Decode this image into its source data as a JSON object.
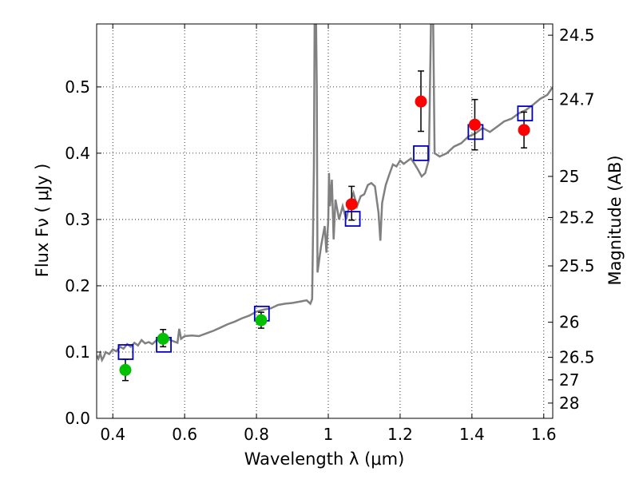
{
  "chart_data": {
    "type": "scatter",
    "xlabel": "Wavelength  λ (μm)",
    "ylabel": "Flux  Fν  ( μJy )",
    "y2label": "Magnitude (AB)",
    "xlim": [
      0.355,
      1.625
    ],
    "ylim": [
      0.0,
      0.595
    ],
    "x_ticks": [
      0.4,
      0.6,
      0.8,
      1.0,
      1.2,
      1.4,
      1.6
    ],
    "x_tick_labels": [
      "0.4",
      "0.6",
      "0.8",
      "1",
      "1.2",
      "1.4",
      "1.6"
    ],
    "y_ticks": [
      0.0,
      0.1,
      0.2,
      0.3,
      0.4,
      0.5
    ],
    "y_tick_labels": [
      "0.0",
      "0.1",
      "0.2",
      "0.3",
      "0.4",
      "0.5"
    ],
    "y2_ticks": [
      {
        "label": "24.5",
        "flux": 0.578
      },
      {
        "label": "24.7",
        "flux": 0.481
      },
      {
        "label": "25",
        "flux": 0.365
      },
      {
        "label": "25.2",
        "flux": 0.303
      },
      {
        "label": "25.5",
        "flux": 0.23
      },
      {
        "label": "26",
        "flux": 0.145
      },
      {
        "label": "26.5",
        "flux": 0.092
      },
      {
        "label": "27",
        "flux": 0.058
      },
      {
        "label": "28",
        "flux": 0.023
      }
    ],
    "grid": true,
    "colors": {
      "model": "#808080",
      "green": "#00c000",
      "red": "#ff0000",
      "box": "#0000cc",
      "error": "#000000"
    },
    "model_spectrum": [
      [
        0.355,
        0.095
      ],
      [
        0.36,
        0.09
      ],
      [
        0.365,
        0.098
      ],
      [
        0.37,
        0.088
      ],
      [
        0.375,
        0.093
      ],
      [
        0.38,
        0.1
      ],
      [
        0.39,
        0.097
      ],
      [
        0.4,
        0.104
      ],
      [
        0.41,
        0.101
      ],
      [
        0.42,
        0.108
      ],
      [
        0.43,
        0.105
      ],
      [
        0.44,
        0.112
      ],
      [
        0.45,
        0.108
      ],
      [
        0.46,
        0.114
      ],
      [
        0.47,
        0.11
      ],
      [
        0.48,
        0.118
      ],
      [
        0.49,
        0.113
      ],
      [
        0.5,
        0.115
      ],
      [
        0.51,
        0.112
      ],
      [
        0.52,
        0.117
      ],
      [
        0.53,
        0.121
      ],
      [
        0.54,
        0.119
      ],
      [
        0.55,
        0.122
      ],
      [
        0.56,
        0.118
      ],
      [
        0.57,
        0.116
      ],
      [
        0.58,
        0.114
      ],
      [
        0.585,
        0.135
      ],
      [
        0.59,
        0.12
      ],
      [
        0.6,
        0.124
      ],
      [
        0.62,
        0.125
      ],
      [
        0.64,
        0.124
      ],
      [
        0.66,
        0.128
      ],
      [
        0.68,
        0.132
      ],
      [
        0.7,
        0.137
      ],
      [
        0.72,
        0.142
      ],
      [
        0.74,
        0.146
      ],
      [
        0.76,
        0.151
      ],
      [
        0.78,
        0.155
      ],
      [
        0.8,
        0.161
      ],
      [
        0.82,
        0.164
      ],
      [
        0.84,
        0.166
      ],
      [
        0.86,
        0.171
      ],
      [
        0.88,
        0.173
      ],
      [
        0.9,
        0.174
      ],
      [
        0.92,
        0.176
      ],
      [
        0.94,
        0.178
      ],
      [
        0.95,
        0.173
      ],
      [
        0.955,
        0.18
      ],
      [
        0.96,
        0.38
      ],
      [
        0.962,
        0.6
      ],
      [
        0.966,
        0.6
      ],
      [
        0.968,
        0.5
      ],
      [
        0.97,
        0.22
      ],
      [
        0.98,
        0.26
      ],
      [
        0.99,
        0.29
      ],
      [
        0.995,
        0.25
      ],
      [
        1.0,
        0.3
      ],
      [
        1.002,
        0.37
      ],
      [
        1.005,
        0.32
      ],
      [
        1.01,
        0.36
      ],
      [
        1.015,
        0.27
      ],
      [
        1.02,
        0.33
      ],
      [
        1.03,
        0.3
      ],
      [
        1.04,
        0.32
      ],
      [
        1.05,
        0.3
      ],
      [
        1.06,
        0.325
      ],
      [
        1.07,
        0.34
      ],
      [
        1.08,
        0.32
      ],
      [
        1.09,
        0.335
      ],
      [
        1.1,
        0.338
      ],
      [
        1.11,
        0.352
      ],
      [
        1.12,
        0.355
      ],
      [
        1.13,
        0.35
      ],
      [
        1.14,
        0.31
      ],
      [
        1.145,
        0.268
      ],
      [
        1.15,
        0.325
      ],
      [
        1.16,
        0.352
      ],
      [
        1.17,
        0.368
      ],
      [
        1.18,
        0.383
      ],
      [
        1.19,
        0.38
      ],
      [
        1.2,
        0.389
      ],
      [
        1.21,
        0.384
      ],
      [
        1.22,
        0.388
      ],
      [
        1.23,
        0.392
      ],
      [
        1.24,
        0.384
      ],
      [
        1.25,
        0.375
      ],
      [
        1.26,
        0.365
      ],
      [
        1.27,
        0.37
      ],
      [
        1.28,
        0.39
      ],
      [
        1.286,
        0.6
      ],
      [
        1.292,
        0.6
      ],
      [
        1.296,
        0.4
      ],
      [
        1.31,
        0.395
      ],
      [
        1.33,
        0.4
      ],
      [
        1.35,
        0.41
      ],
      [
        1.37,
        0.415
      ],
      [
        1.39,
        0.425
      ],
      [
        1.41,
        0.43
      ],
      [
        1.43,
        0.438
      ],
      [
        1.45,
        0.432
      ],
      [
        1.47,
        0.44
      ],
      [
        1.49,
        0.448
      ],
      [
        1.51,
        0.452
      ],
      [
        1.53,
        0.46
      ],
      [
        1.55,
        0.465
      ],
      [
        1.57,
        0.473
      ],
      [
        1.59,
        0.482
      ],
      [
        1.61,
        0.488
      ],
      [
        1.625,
        0.5
      ]
    ],
    "green_points": [
      {
        "x": 0.435,
        "y": 0.073,
        "yerr_low": 0.016,
        "yerr_high": 0.016
      },
      {
        "x": 0.54,
        "y": 0.12,
        "yerr_low": 0.012,
        "yerr_high": 0.014
      },
      {
        "x": 0.813,
        "y": 0.148,
        "yerr_low": 0.012,
        "yerr_high": 0.012
      }
    ],
    "red_points": [
      {
        "x": 1.065,
        "y": 0.323,
        "yerr_low": 0.024,
        "yerr_high": 0.027
      },
      {
        "x": 1.258,
        "y": 0.478,
        "yerr_low": 0.045,
        "yerr_high": 0.046
      },
      {
        "x": 1.408,
        "y": 0.443,
        "yerr_low": 0.038,
        "yerr_high": 0.038
      },
      {
        "x": 1.545,
        "y": 0.435,
        "yerr_low": 0.027,
        "yerr_high": 0.027
      }
    ],
    "model_boxes": [
      {
        "x": 0.436,
        "y": 0.1
      },
      {
        "x": 0.542,
        "y": 0.111
      },
      {
        "x": 0.815,
        "y": 0.158
      },
      {
        "x": 1.068,
        "y": 0.301
      },
      {
        "x": 1.258,
        "y": 0.4
      },
      {
        "x": 1.41,
        "y": 0.432
      },
      {
        "x": 1.548,
        "y": 0.46
      }
    ]
  }
}
